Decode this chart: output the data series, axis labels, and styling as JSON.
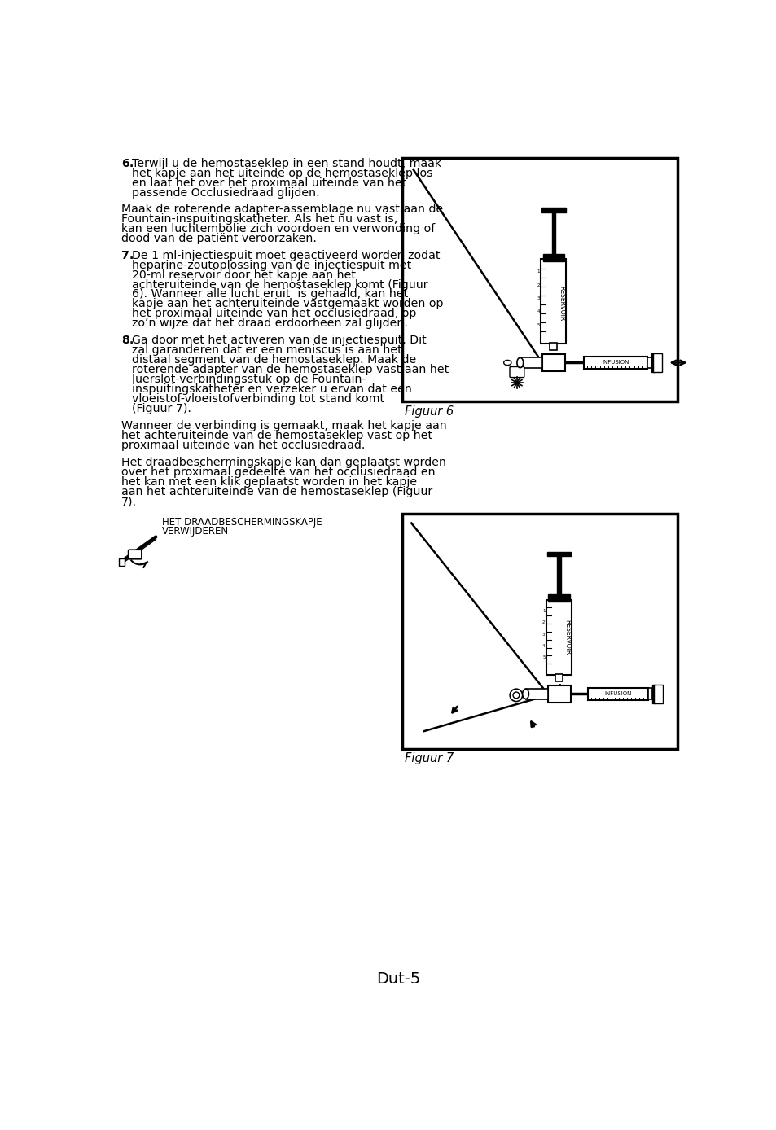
{
  "page_bg": "#ffffff",
  "text_color": "#000000",
  "page_number": "Dut-5",
  "fig6_caption": "Figuur 6",
  "fig7_caption": "Figuur 7",
  "para6_bold": "6.",
  "para6_text": "Terwijl u de hemostaseklep in een stand houdt, maak het kapje aan het uiteinde op de hemostaseklep los en laat het over het proximaal uiteinde van het passende Occlusiedraad glijden.",
  "para6b_text": "Maak de roterende adapter-assemblage nu vast aan de Fountain-inspuitingskatheter. Als het nu vast is, kan een luchtembolie zich voordoen en verwonding of dood van de patiënt veroorzaken.",
  "para7_bold": "7.",
  "para7_text": "De 1 ml-injectiespuit moet geactiveerd worden zodat heparine-zoutoplossing van de injectiespuit met 20-ml reservoir door het kapje aan het achteruiteinde van de hemostaseklep komt (Figuur 6). Wanneer alle lucht eruit  is gehaald, kan het kapje aan het achteruiteinde vastgemaakt worden op het proximaal uiteinde van het occlusiedraad, op zo’n wijze dat het draad erdoorheen zal glijden.",
  "para8_bold": "8.",
  "para8_text": "Ga door met het activeren van de injectiespuit. Dit zal garanderen dat er een meniscus is aan het distaal segment van de hemostaseklep. Maak de roterende adapter van de hemostaseklep vast aan het luerslot-verbindingsstuk op de Fountain-inspuitingskatheter en verzeker u ervan dat een vloeistof-vloeistofverbinding tot stand komt (Figuur 7).",
  "para8b_text": "Wanneer de verbinding is gemaakt, maak het kapje aan het achteruiteinde van de hemostaseklep vast op het proximaal uiteinde van het occlusiedraad.",
  "para8c_text": "Het draadbeschermingskapje kan dan geplaatst worden over het proximaal gedeelte van het occlusiedraad en het kan met een klik geplaatst worden in het kapje aan het achteruiteinde van de hemostaseklep (Figuur 7).",
  "label_line1": "HET DRAADBESCHERMINGSKAPJE",
  "label_line2": "VERWIJDEREN",
  "font_size_body": 10.2,
  "font_size_caption": 10.5,
  "font_size_label": 8.5,
  "font_size_page": 14
}
